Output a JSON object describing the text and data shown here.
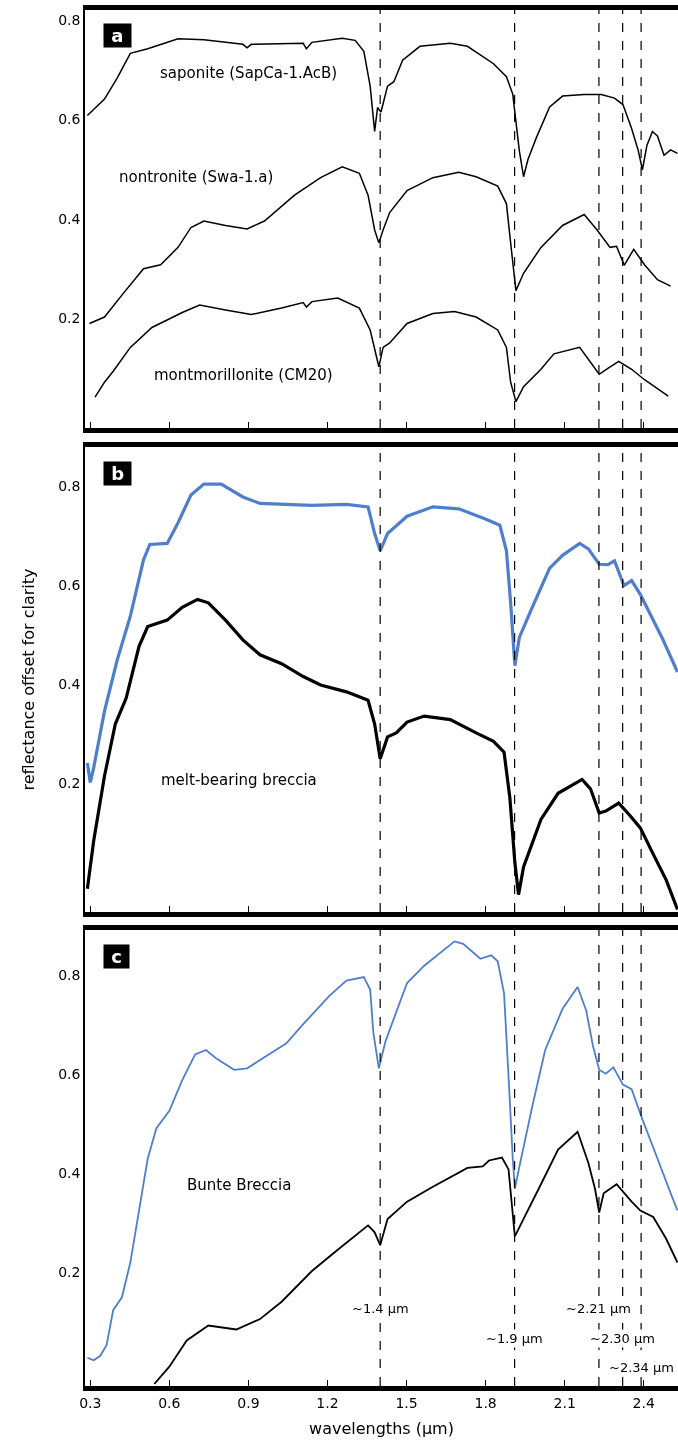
{
  "chart_data": [
    {
      "type": "line",
      "title": "a",
      "xlim": [
        0.28,
        2.53
      ],
      "xticks": [
        0.3,
        0.6,
        0.9,
        1.2,
        1.5,
        1.8,
        2.1,
        2.4
      ],
      "ylim": [
        -0.02,
        0.82
      ],
      "yticks": [
        0.2,
        0.4,
        0.6,
        0.8
      ],
      "tick_labels": "y",
      "series": [
        {
          "color": "#000000",
          "x": [
            0.289,
            0.354,
            0.403,
            0.452,
            0.518,
            0.633,
            0.731,
            0.879,
            0.895,
            0.911,
            1.108,
            1.12,
            1.141,
            1.256,
            1.305,
            1.338,
            1.362,
            1.379,
            1.39,
            1.403,
            1.428,
            1.452,
            1.485,
            1.551,
            1.666,
            1.731,
            1.83,
            1.879,
            1.903,
            1.928,
            1.944,
            1.961,
            1.993,
            2.043,
            2.092,
            2.174,
            2.239,
            2.289,
            2.321,
            2.354,
            2.379,
            2.395,
            2.412,
            2.433,
            2.452,
            2.477,
            2.502,
            2.528
          ],
          "values": [
            0.608,
            0.641,
            0.684,
            0.733,
            0.742,
            0.762,
            0.76,
            0.751,
            0.744,
            0.751,
            0.753,
            0.742,
            0.755,
            0.763,
            0.759,
            0.737,
            0.667,
            0.576,
            0.624,
            0.615,
            0.667,
            0.676,
            0.719,
            0.747,
            0.753,
            0.747,
            0.712,
            0.686,
            0.651,
            0.537,
            0.485,
            0.52,
            0.564,
            0.625,
            0.647,
            0.65,
            0.65,
            0.643,
            0.63,
            0.582,
            0.538,
            0.499,
            0.548,
            0.576,
            0.567,
            0.528,
            0.539,
            0.532
          ]
        },
        {
          "color": "#000000",
          "x": [
            0.297,
            0.354,
            0.42,
            0.502,
            0.567,
            0.633,
            0.682,
            0.731,
            0.813,
            0.895,
            0.961,
            1.075,
            1.174,
            1.256,
            1.321,
            1.354,
            1.379,
            1.395,
            1.411,
            1.436,
            1.502,
            1.6,
            1.698,
            1.764,
            1.846,
            1.879,
            1.895,
            1.915,
            1.944,
            2.01,
            2.092,
            2.174,
            2.223,
            2.272,
            2.297,
            2.326,
            2.362,
            2.403,
            2.452,
            2.502
          ],
          "values": [
            0.19,
            0.203,
            0.247,
            0.3,
            0.308,
            0.343,
            0.383,
            0.396,
            0.387,
            0.38,
            0.396,
            0.448,
            0.483,
            0.505,
            0.492,
            0.448,
            0.378,
            0.352,
            0.378,
            0.413,
            0.457,
            0.483,
            0.494,
            0.485,
            0.466,
            0.431,
            0.352,
            0.256,
            0.291,
            0.343,
            0.387,
            0.409,
            0.378,
            0.343,
            0.345,
            0.307,
            0.339,
            0.308,
            0.278,
            0.265
          ]
        },
        {
          "color": "#000000",
          "x": [
            0.318,
            0.354,
            0.387,
            0.452,
            0.534,
            0.649,
            0.715,
            0.813,
            0.911,
            1.026,
            1.108,
            1.12,
            1.141,
            1.239,
            1.321,
            1.362,
            1.395,
            1.411,
            1.436,
            1.502,
            1.6,
            1.682,
            1.764,
            1.846,
            1.879,
            1.895,
            1.915,
            1.944,
            2.01,
            2.059,
            2.157,
            2.231,
            2.264,
            2.305,
            2.354,
            2.403,
            2.493
          ],
          "values": [
            0.042,
            0.072,
            0.094,
            0.142,
            0.182,
            0.212,
            0.227,
            0.217,
            0.208,
            0.221,
            0.232,
            0.223,
            0.234,
            0.241,
            0.221,
            0.177,
            0.103,
            0.142,
            0.151,
            0.19,
            0.21,
            0.214,
            0.203,
            0.177,
            0.142,
            0.072,
            0.033,
            0.063,
            0.098,
            0.129,
            0.142,
            0.088,
            0.1,
            0.114,
            0.098,
            0.077,
            0.044
          ]
        }
      ],
      "annotations": [
        "saponite (SapCa-1.AcB)",
        "nontronite (Swa-1.a)",
        "montmorillonite (CM20)"
      ],
      "ref_lines": [
        {
          "axis": "x",
          "value": 1.4,
          "line_style": "dashed"
        },
        {
          "axis": "x",
          "value": 1.91,
          "line_style": "dashed"
        },
        {
          "axis": "x",
          "value": 2.23,
          "line_style": "dashed"
        },
        {
          "axis": "x",
          "value": 2.32,
          "line_style": "dashed"
        },
        {
          "axis": "x",
          "value": 2.39,
          "line_style": "dashed"
        }
      ]
    },
    {
      "type": "line",
      "title": "b",
      "ylabel": "reflectance offset for clarity",
      "xlim": [
        0.28,
        2.53
      ],
      "xticks": [
        0.3,
        0.6,
        0.9,
        1.2,
        1.5,
        1.8,
        2.1,
        2.4
      ],
      "ylim": [
        -0.06,
        0.88
      ],
      "yticks": [
        0.2,
        0.4,
        0.6,
        0.8
      ],
      "tick_labels": "y",
      "series": [
        {
          "color": "#4f7fcc",
          "x": [
            0.289,
            0.3,
            0.313,
            0.354,
            0.403,
            0.452,
            0.502,
            0.526,
            0.592,
            0.633,
            0.682,
            0.731,
            0.797,
            0.879,
            0.944,
            1.141,
            1.272,
            1.354,
            1.379,
            1.4,
            1.428,
            1.502,
            1.6,
            1.698,
            1.797,
            1.854,
            1.879,
            1.895,
            1.911,
            1.928,
            1.977,
            2.043,
            2.092,
            2.157,
            2.19,
            2.231,
            2.264,
            2.289,
            2.325,
            2.354,
            2.387,
            2.42,
            2.469,
            2.528
          ],
          "values": [
            0.241,
            0.202,
            0.232,
            0.346,
            0.451,
            0.538,
            0.652,
            0.683,
            0.685,
            0.727,
            0.783,
            0.805,
            0.805,
            0.779,
            0.766,
            0.762,
            0.764,
            0.759,
            0.705,
            0.67,
            0.705,
            0.74,
            0.759,
            0.755,
            0.735,
            0.722,
            0.67,
            0.565,
            0.438,
            0.495,
            0.556,
            0.635,
            0.661,
            0.685,
            0.674,
            0.643,
            0.642,
            0.65,
            0.6,
            0.61,
            0.582,
            0.547,
            0.495,
            0.425
          ]
        },
        {
          "color": "#000000",
          "x": [
            0.289,
            0.313,
            0.354,
            0.395,
            0.436,
            0.485,
            0.518,
            0.592,
            0.649,
            0.707,
            0.748,
            0.813,
            0.879,
            0.944,
            1.026,
            1.108,
            1.174,
            1.272,
            1.354,
            1.379,
            1.4,
            1.428,
            1.461,
            1.502,
            1.567,
            1.666,
            1.764,
            1.83,
            1.87,
            1.892,
            1.911,
            1.925,
            1.944,
            2.01,
            2.075,
            2.166,
            2.198,
            2.231,
            2.256,
            2.305,
            2.346,
            2.387,
            2.436,
            2.485,
            2.528
          ],
          "values": [
            -0.013,
            0.084,
            0.215,
            0.32,
            0.372,
            0.477,
            0.517,
            0.53,
            0.556,
            0.572,
            0.565,
            0.53,
            0.49,
            0.46,
            0.442,
            0.416,
            0.399,
            0.385,
            0.368,
            0.32,
            0.25,
            0.294,
            0.302,
            0.324,
            0.336,
            0.329,
            0.302,
            0.285,
            0.263,
            0.171,
            0.04,
            -0.025,
            0.031,
            0.127,
            0.18,
            0.208,
            0.189,
            0.14,
            0.144,
            0.16,
            0.136,
            0.11,
            0.057,
            0.005,
            -0.055
          ]
        }
      ],
      "annotations": [
        "melt-bearing breccia"
      ],
      "ref_lines": [
        {
          "axis": "x",
          "value": 1.4,
          "line_style": "dashed"
        },
        {
          "axis": "x",
          "value": 1.91,
          "line_style": "dashed"
        },
        {
          "axis": "x",
          "value": 2.23,
          "line_style": "dashed"
        },
        {
          "axis": "x",
          "value": 2.32,
          "line_style": "dashed"
        },
        {
          "axis": "x",
          "value": 2.39,
          "line_style": "dashed"
        }
      ]
    },
    {
      "type": "line",
      "title": "c",
      "xlabel": "wavelengths (µm)",
      "xlim": [
        0.28,
        2.53
      ],
      "xticks": [
        0.3,
        0.6,
        0.9,
        1.2,
        1.5,
        1.8,
        2.1,
        2.4
      ],
      "ylim": [
        -0.03,
        0.89
      ],
      "yticks": [
        0.2,
        0.4,
        0.6,
        0.8
      ],
      "series": [
        {
          "color": "#4f7fcc",
          "x": [
            0.289,
            0.313,
            0.338,
            0.362,
            0.387,
            0.42,
            0.452,
            0.485,
            0.518,
            0.551,
            0.6,
            0.649,
            0.698,
            0.739,
            0.78,
            0.846,
            0.895,
            0.977,
            1.043,
            1.108,
            1.207,
            1.272,
            1.338,
            1.362,
            1.374,
            1.395,
            1.42,
            1.444,
            1.502,
            1.567,
            1.682,
            1.715,
            1.78,
            1.821,
            1.846,
            1.87,
            1.887,
            1.903,
            1.911,
            1.928,
            1.977,
            2.026,
            2.092,
            2.149,
            2.182,
            2.207,
            2.231,
            2.256,
            2.285,
            2.321,
            2.354,
            2.395,
            2.452,
            2.502,
            2.528
          ],
          "values": [
            0.027,
            0.022,
            0.031,
            0.053,
            0.123,
            0.149,
            0.219,
            0.324,
            0.429,
            0.49,
            0.525,
            0.587,
            0.639,
            0.648,
            0.63,
            0.608,
            0.611,
            0.639,
            0.661,
            0.7,
            0.757,
            0.788,
            0.795,
            0.77,
            0.683,
            0.611,
            0.665,
            0.7,
            0.783,
            0.818,
            0.867,
            0.862,
            0.832,
            0.839,
            0.827,
            0.762,
            0.595,
            0.429,
            0.368,
            0.412,
            0.534,
            0.648,
            0.731,
            0.775,
            0.727,
            0.657,
            0.608,
            0.6,
            0.613,
            0.578,
            0.569,
            0.508,
            0.429,
            0.359,
            0.324
          ]
        },
        {
          "color": "#000000",
          "x": [
            0.543,
            0.6,
            0.666,
            0.748,
            0.854,
            0.944,
            1.026,
            1.141,
            1.239,
            1.354,
            1.379,
            1.4,
            1.428,
            1.502,
            1.6,
            1.731,
            1.789,
            1.813,
            1.862,
            1.887,
            1.911,
            1.944,
            2.01,
            2.075,
            2.149,
            2.19,
            2.215,
            2.231,
            2.248,
            2.297,
            2.354,
            2.387,
            2.436,
            2.485,
            2.528
          ],
          "values": [
            -0.026,
            0.009,
            0.062,
            0.092,
            0.084,
            0.105,
            0.14,
            0.202,
            0.245,
            0.294,
            0.28,
            0.254,
            0.307,
            0.342,
            0.372,
            0.41,
            0.413,
            0.425,
            0.431,
            0.407,
            0.272,
            0.307,
            0.377,
            0.447,
            0.483,
            0.42,
            0.368,
            0.32,
            0.359,
            0.377,
            0.342,
            0.324,
            0.311,
            0.267,
            0.219
          ]
        }
      ],
      "annotations": [
        "Bunte Breccia"
      ],
      "ref_lines": [
        {
          "axis": "x",
          "value": 1.4,
          "label": "~1.4 µm",
          "line_style": "dashed"
        },
        {
          "axis": "x",
          "value": 1.91,
          "label": "~1.9 µm",
          "line_style": "dashed"
        },
        {
          "axis": "x",
          "value": 2.23,
          "label": "~2.21 µm",
          "line_style": "dashed"
        },
        {
          "axis": "x",
          "value": 2.32,
          "label": "~2.30 µm",
          "line_style": "dashed"
        },
        {
          "axis": "x",
          "value": 2.39,
          "label": "~2.34 µm",
          "line_style": "dashed"
        }
      ]
    }
  ]
}
